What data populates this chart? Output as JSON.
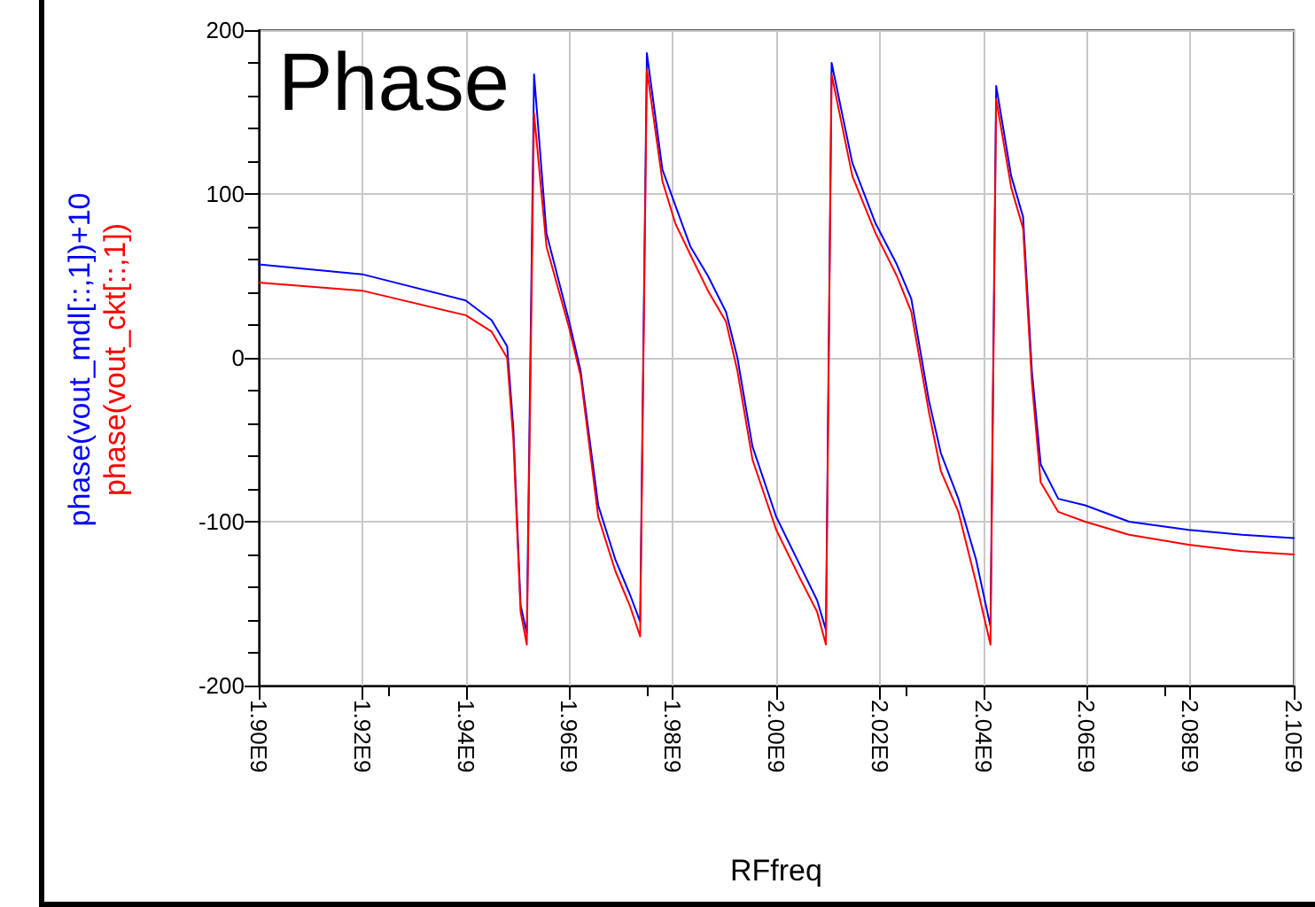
{
  "chart_data": {
    "type": "line",
    "title": "Phase",
    "xlabel": "RFfreq",
    "x": [
      1900000000.0,
      1920000000.0,
      1940000000.0,
      1945000000.0,
      1948000000.0,
      1949200000.0,
      1950600000.0,
      1951800000.0,
      1953200000.0,
      1955600000.0,
      1960000000.0,
      1962200000.0,
      1965600000.0,
      1968900000.0,
      1971800000.0,
      1973700000.0,
      1975000000.0,
      1978000000.0,
      1980500000.0,
      1983400000.0,
      1986800000.0,
      1990300000.0,
      1992500000.0,
      1995400000.0,
      2000000000.0,
      2004500000.0,
      2007900000.0,
      2009600000.0,
      2010700000.0,
      2014700000.0,
      2019200000.0,
      2023300000.0,
      2026100000.0,
      2029500000.0,
      2031800000.0,
      2035200000.0,
      2038600000.0,
      2041400000.0,
      2042500000.0,
      2045400000.0,
      2047700000.0,
      2049400000.0,
      2051100000.0,
      2054500000.0,
      2059700000.0,
      2068200000.0,
      2079700000.0,
      2090000000.0,
      2100000000.0
    ],
    "series": [
      {
        "name": "phase(vout_mdl[::,1])+10",
        "color": "#0000ff",
        "values": [
          57,
          51,
          35,
          23,
          7,
          -43,
          -151,
          -168,
          173,
          76,
          22,
          -8,
          -90,
          -123,
          -145,
          -161,
          186,
          115,
          93,
          68,
          50,
          28,
          0,
          -54,
          -97,
          -126,
          -148,
          -166,
          180,
          119,
          82,
          57,
          36,
          -26,
          -58,
          -86,
          -123,
          -164,
          166,
          111,
          86,
          -8,
          -65,
          -86,
          -90,
          -100,
          -105,
          -108,
          -110
        ]
      },
      {
        "name": "phase(vout_ckt[::,1])",
        "color": "#ff0000",
        "values": [
          46,
          41,
          26,
          16,
          0,
          -50,
          -155,
          -175,
          149,
          68,
          18,
          -11,
          -97,
          -130,
          -152,
          -170,
          176,
          108,
          82,
          63,
          41,
          22,
          -8,
          -62,
          -105,
          -134,
          -155,
          -175,
          173,
          111,
          76,
          50,
          28,
          -33,
          -69,
          -94,
          -137,
          -175,
          158,
          104,
          79,
          -15,
          -76,
          -94,
          -100,
          -108,
          -114,
          -118,
          -120
        ]
      }
    ],
    "xlim": [
      1900000000.0,
      2100000000.0
    ],
    "xticks": [
      {
        "value": 1900000000.0,
        "label": "1.90E9"
      },
      {
        "value": 1920000000.0,
        "label": "1.92E9"
      },
      {
        "value": 1940000000.0,
        "label": "1.94E9"
      },
      {
        "value": 1960000000.0,
        "label": "1.96E9"
      },
      {
        "value": 1980000000.0,
        "label": "1.98E9"
      },
      {
        "value": 2000000000.0,
        "label": "2.00E9"
      },
      {
        "value": 2020000000.0,
        "label": "2.02E9"
      },
      {
        "value": 2040000000.0,
        "label": "2.04E9"
      },
      {
        "value": 2060000000.0,
        "label": "2.06E9"
      },
      {
        "value": 2080000000.0,
        "label": "2.08E9"
      },
      {
        "value": 2100000000.0,
        "label": "2.10E9"
      }
    ],
    "ylim": [
      -200,
      200
    ],
    "yticks": [
      -200,
      -100,
      0,
      100,
      200
    ],
    "grid": true,
    "legend": false,
    "marker": "none",
    "line_style": "solid"
  }
}
